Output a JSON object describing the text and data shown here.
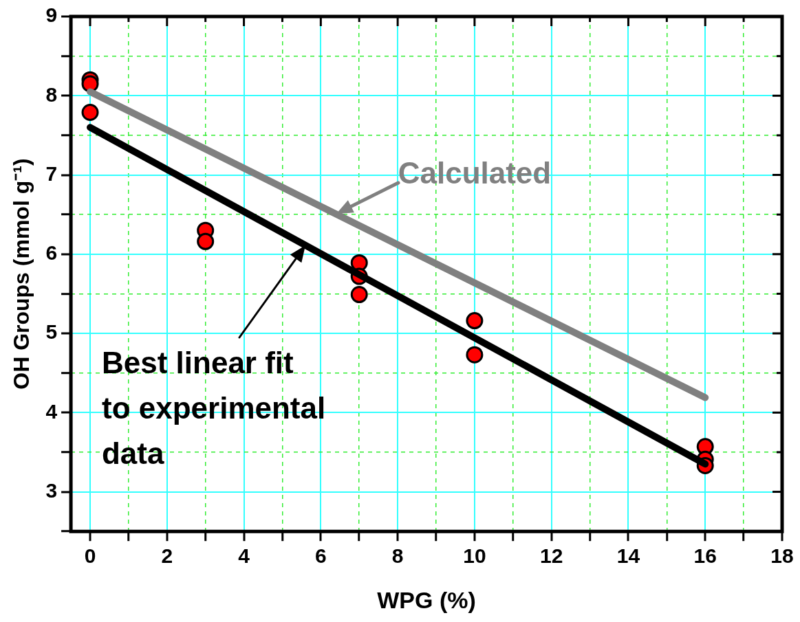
{
  "chart_data": {
    "type": "scatter",
    "xlabel": "WPG (%)",
    "ylabel": "OH Groups (mmol g⁻¹)",
    "xlim": [
      -0.5,
      18
    ],
    "ylim": [
      2.5,
      9
    ],
    "xticks": [
      0,
      {
        "value": 1,
        "label": null
      },
      2,
      {
        "value": 3,
        "label": null
      },
      4,
      {
        "value": 5,
        "label": null
      },
      6,
      {
        "value": 7,
        "label": null
      },
      8,
      {
        "value": 9,
        "label": null
      },
      10,
      {
        "value": 11,
        "label": null
      },
      12,
      {
        "value": 13,
        "label": null
      },
      14,
      {
        "value": 15,
        "label": null
      },
      16,
      {
        "value": 17,
        "label": null
      },
      18
    ],
    "yticks": [
      {
        "value": 2.5,
        "label": null
      },
      3,
      {
        "value": 3.5,
        "label": null
      },
      4,
      {
        "value": 4.5,
        "label": null
      },
      5,
      {
        "value": 5.5,
        "label": null
      },
      6,
      {
        "value": 6.5,
        "label": null
      },
      7,
      {
        "value": 7.5,
        "label": null
      },
      8,
      {
        "value": 8.5,
        "label": null
      },
      9
    ],
    "grid": true,
    "legend": false,
    "series": [
      {
        "type": "line",
        "name": "Calculated",
        "color": "#808080",
        "x": [
          0,
          16
        ],
        "values": [
          8.05,
          4.19
        ]
      },
      {
        "type": "line",
        "name": "Best linear fit to experimental data",
        "color": "#000000",
        "x": [
          0,
          16
        ],
        "values": [
          7.6,
          3.35
        ]
      },
      {
        "marker": "circle",
        "color": "#ff0000",
        "x": [
          0,
          0,
          0,
          3,
          3,
          7,
          7,
          7,
          10,
          10,
          16,
          16,
          16
        ],
        "values": [
          8.2,
          8.15,
          7.79,
          6.3,
          6.16,
          5.89,
          5.72,
          5.49,
          5.16,
          4.73,
          3.57,
          3.41,
          3.33
        ]
      }
    ]
  }
}
